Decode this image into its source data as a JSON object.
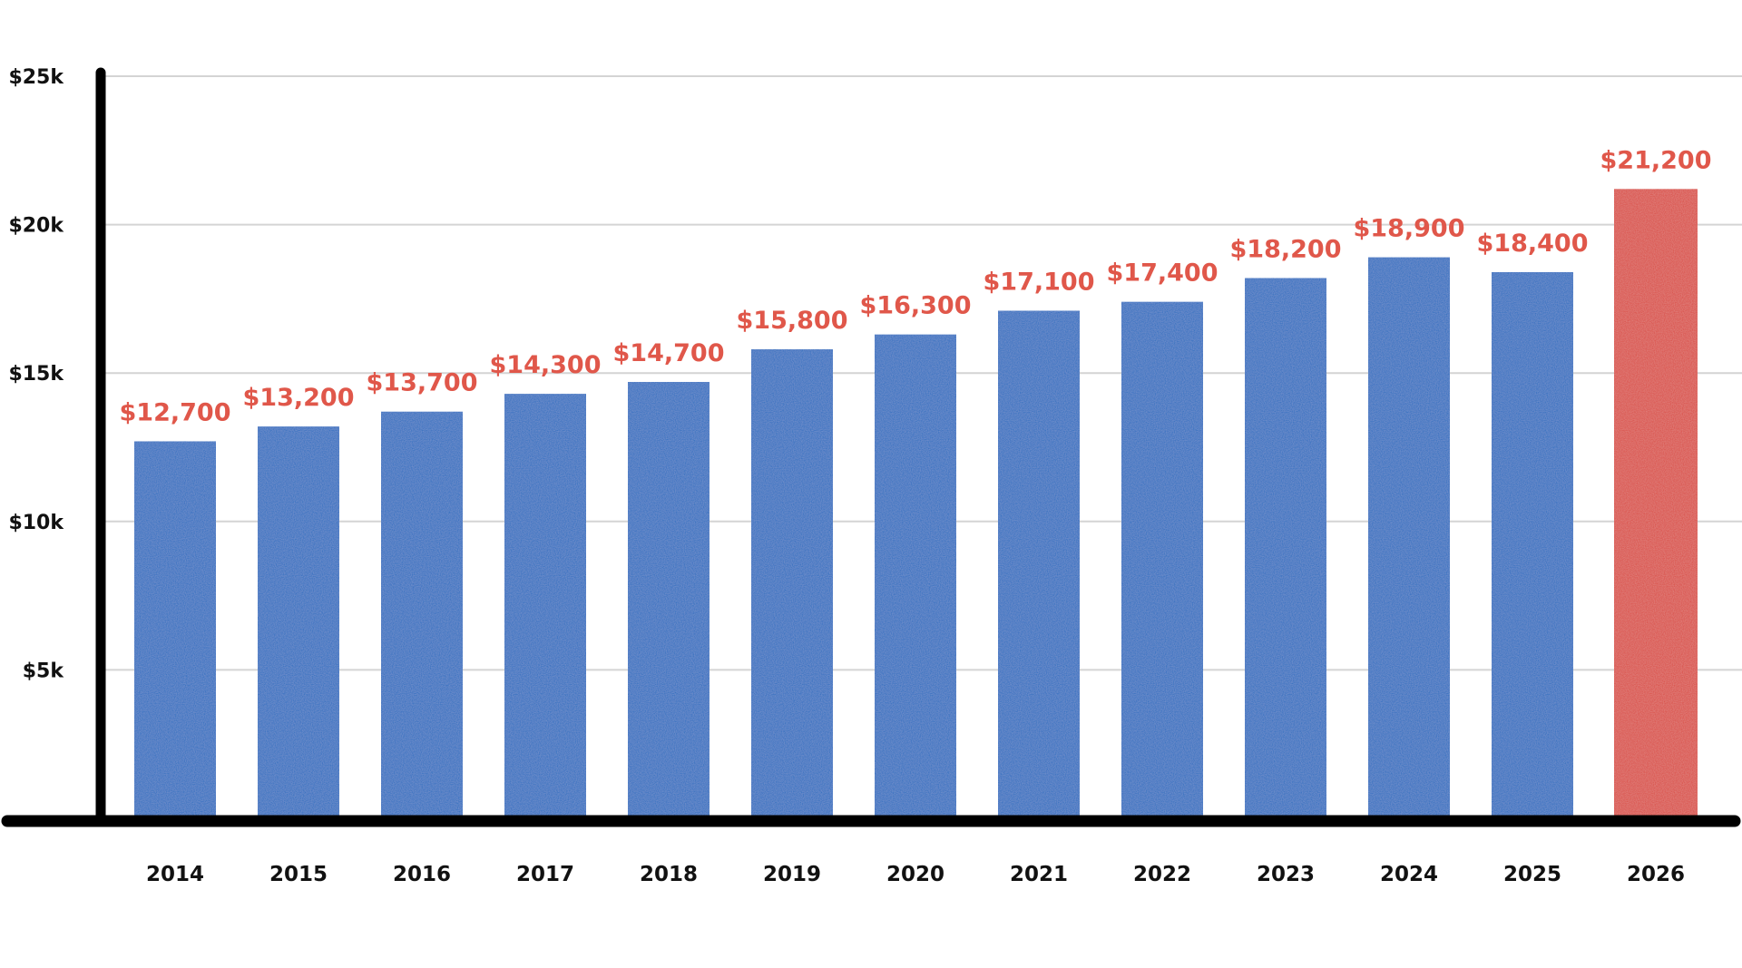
{
  "chart_data": {
    "type": "bar",
    "title": "",
    "xlabel": "",
    "ylabel": "",
    "categories": [
      "2014",
      "2015",
      "2016",
      "2017",
      "2018",
      "2019",
      "2020",
      "2021",
      "2022",
      "2023",
      "2024",
      "2025",
      "2026"
    ],
    "values": [
      12700,
      13200,
      13700,
      14300,
      14700,
      15800,
      16300,
      17100,
      17400,
      18200,
      18900,
      18400,
      21200
    ],
    "data_labels": [
      "$12,700",
      "$13,200",
      "$13,700",
      "$14,300",
      "$14,700",
      "$15,800",
      "$16,300",
      "$17,100",
      "$17,400",
      "$18,200",
      "$18,900",
      "$18,400",
      "$21,200"
    ],
    "highlighted_category": "2026",
    "ylim": [
      0,
      25000
    ],
    "yticks": [
      5000,
      10000,
      15000,
      20000,
      25000
    ],
    "ytick_labels": [
      "$5k",
      "$10k",
      "$15k",
      "$20k",
      "$25k"
    ],
    "grid": true,
    "legend": "none"
  },
  "colors": {
    "bar": "#1f6bbf",
    "highlight_bar": "#d9463c",
    "data_label": "#e0574a",
    "axis": "#000000",
    "grid": "#d4d4d4"
  }
}
